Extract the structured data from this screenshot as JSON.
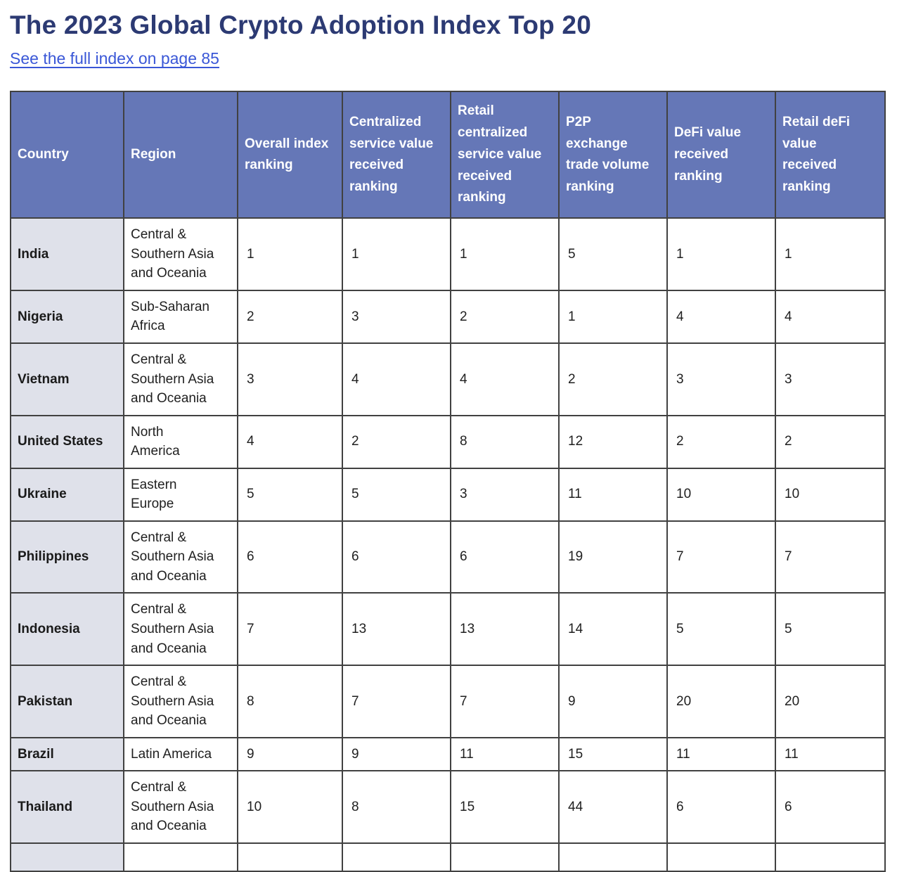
{
  "page": {
    "title": "The 2023 Global Crypto Adoption Index Top 20",
    "link_label": "See the full index on page 85"
  },
  "table": {
    "columns": [
      "Country",
      "Region",
      "Overall index\nranking",
      "Centralized\nservice value\nreceived\nranking",
      "Retail\ncentralized\nservice value\nreceived\nranking",
      "P2P\nexchange\ntrade volume\nranking",
      "DeFi value\nreceived\nranking",
      "Retail deFi\nvalue\nreceived\nranking"
    ],
    "rows": [
      [
        "India",
        "Central &\nSouthern Asia\nand Oceania",
        "1",
        "1",
        "1",
        "5",
        "1",
        "1"
      ],
      [
        "Nigeria",
        "Sub-Saharan\nAfrica",
        "2",
        "3",
        "2",
        "1",
        "4",
        "4"
      ],
      [
        "Vietnam",
        "Central &\nSouthern Asia\nand Oceania",
        "3",
        "4",
        "4",
        "2",
        "3",
        "3"
      ],
      [
        "United States",
        "North\nAmerica",
        "4",
        "2",
        "8",
        "12",
        "2",
        "2"
      ],
      [
        "Ukraine",
        "Eastern\nEurope",
        "5",
        "5",
        "3",
        "11",
        "10",
        "10"
      ],
      [
        "Philippines",
        "Central &\nSouthern Asia\nand Oceania",
        "6",
        "6",
        "6",
        "19",
        "7",
        "7"
      ],
      [
        "Indonesia",
        "Central &\nSouthern Asia\nand Oceania",
        "7",
        "13",
        "13",
        "14",
        "5",
        "5"
      ],
      [
        "Pakistan",
        "Central &\nSouthern Asia\nand Oceania",
        "8",
        "7",
        "7",
        "9",
        "20",
        "20"
      ],
      [
        "Brazil",
        "Latin America",
        "9",
        "9",
        "11",
        "15",
        "11",
        "11"
      ],
      [
        "Thailand",
        "Central &\nSouthern Asia\nand Oceania",
        "10",
        "8",
        "15",
        "44",
        "6",
        "6"
      ]
    ]
  },
  "colors": {
    "header_bg": "#6577b7",
    "header_text": "#ffffff",
    "country_col_bg": "#dfe1ea",
    "cell_border": "#414141",
    "title_text": "#2c3a73",
    "link_text": "#3a57d7",
    "body_text": "#1f1f1f"
  }
}
